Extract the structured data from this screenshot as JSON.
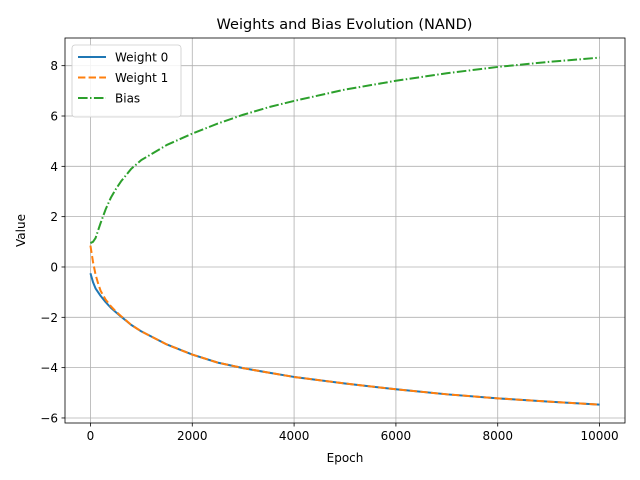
{
  "chart_data": {
    "type": "line",
    "title": "Weights and Bias Evolution (NAND)",
    "xlabel": "Epoch",
    "ylabel": "Value",
    "xlim": [
      -500,
      10500
    ],
    "ylim": [
      -6.2,
      9.1
    ],
    "x_ticks": [
      0,
      2000,
      4000,
      6000,
      8000,
      10000
    ],
    "y_ticks": [
      -6,
      -4,
      -2,
      0,
      2,
      4,
      6,
      8
    ],
    "grid": true,
    "legend_position": "upper-left",
    "x": [
      0,
      50,
      100,
      150,
      200,
      300,
      400,
      500,
      600,
      800,
      1000,
      1500,
      2000,
      2500,
      3000,
      3500,
      4000,
      5000,
      6000,
      7000,
      8000,
      9000,
      10000
    ],
    "series": [
      {
        "name": "Weight 0",
        "color": "#1f77b4",
        "style": "solid",
        "values": [
          -0.25,
          -0.6,
          -0.85,
          -1.0,
          -1.15,
          -1.4,
          -1.62,
          -1.8,
          -1.97,
          -2.3,
          -2.56,
          -3.08,
          -3.48,
          -3.8,
          -4.02,
          -4.2,
          -4.37,
          -4.63,
          -4.86,
          -5.06,
          -5.22,
          -5.35,
          -5.47
        ]
      },
      {
        "name": "Weight 1",
        "color": "#ff7f0e",
        "style": "dashed",
        "values": [
          0.85,
          0.2,
          -0.3,
          -0.65,
          -0.95,
          -1.3,
          -1.56,
          -1.77,
          -1.95,
          -2.3,
          -2.56,
          -3.08,
          -3.48,
          -3.8,
          -4.02,
          -4.2,
          -4.37,
          -4.63,
          -4.86,
          -5.06,
          -5.22,
          -5.35,
          -5.47
        ]
      },
      {
        "name": "Bias",
        "color": "#2ca02c",
        "style": "dashdot",
        "values": [
          0.95,
          1.0,
          1.15,
          1.45,
          1.75,
          2.3,
          2.75,
          3.1,
          3.4,
          3.9,
          4.25,
          4.85,
          5.3,
          5.7,
          6.05,
          6.35,
          6.6,
          7.05,
          7.4,
          7.7,
          7.95,
          8.15,
          8.32
        ]
      }
    ]
  }
}
